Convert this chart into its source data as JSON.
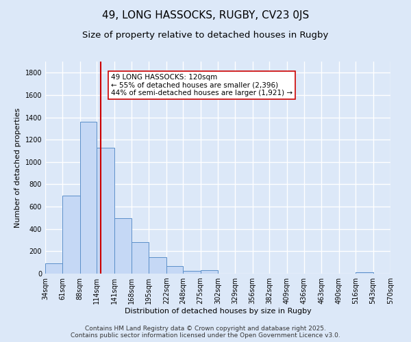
{
  "title": "49, LONG HASSOCKS, RUGBY, CV23 0JS",
  "subtitle": "Size of property relative to detached houses in Rugby",
  "xlabel": "Distribution of detached houses by size in Rugby",
  "ylabel": "Number of detached properties",
  "background_color": "#dce8f8",
  "bar_color": "#c5d8f5",
  "bar_edge_color": "#5b8fc9",
  "grid_color": "#ffffff",
  "ref_line_x": 120,
  "ref_line_color": "#cc0000",
  "annotation_line1": "49 LONG HASSOCKS: 120sqm",
  "annotation_line2": "← 55% of detached houses are smaller (2,396)",
  "annotation_line3": "44% of semi-detached houses are larger (1,921) →",
  "annotation_box_color": "#ffffff",
  "annotation_box_edge": "#cc0000",
  "footer1": "Contains HM Land Registry data © Crown copyright and database right 2025.",
  "footer2": "Contains public sector information licensed under the Open Government Licence v3.0.",
  "bin_edges": [
    34,
    61,
    88,
    114,
    141,
    168,
    195,
    222,
    248,
    275,
    302,
    329,
    356,
    382,
    409,
    436,
    463,
    490,
    516,
    543,
    570
  ],
  "bin_heights": [
    95,
    700,
    1360,
    1130,
    495,
    280,
    145,
    65,
    25,
    30,
    0,
    0,
    0,
    0,
    0,
    0,
    0,
    0,
    10,
    0
  ],
  "ylim": [
    0,
    1900
  ],
  "yticks": [
    0,
    200,
    400,
    600,
    800,
    1000,
    1200,
    1400,
    1600,
    1800
  ],
  "title_fontsize": 11,
  "subtitle_fontsize": 9.5,
  "axis_label_fontsize": 8,
  "tick_fontsize": 7,
  "footer_fontsize": 6.5,
  "annotation_fontsize": 7.5
}
